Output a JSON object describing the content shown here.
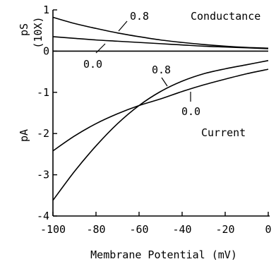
{
  "chart_data": {
    "type": "line",
    "xlabel": "Membrane Potential (mV)",
    "xlim": [
      -100,
      0
    ],
    "ylim": [
      -4,
      1
    ],
    "x_ticks": [
      -100,
      -80,
      -60,
      -40,
      -20,
      0
    ],
    "y_ticks": [
      1,
      0,
      -1,
      -2,
      -3,
      -4
    ],
    "x_tick_labels": [
      "-100",
      "-80",
      "-60",
      "-40",
      "-20",
      "0"
    ],
    "y_tick_labels": [
      "1",
      "0",
      "-1",
      "-2",
      "-3",
      "-4"
    ],
    "y_axis_labels": {
      "upper": "pS",
      "upper_sub": "(10X)",
      "lower": "pA"
    },
    "grid": false,
    "groups": [
      {
        "name": "Conductance",
        "label_text": "Conductance"
      },
      {
        "name": "Current",
        "label_text": "Current"
      }
    ],
    "series": [
      {
        "group": "Conductance",
        "label": "0.8",
        "x": [
          -100,
          -90,
          -80,
          -70,
          -60,
          -50,
          -40,
          -30,
          -20,
          -10,
          0
        ],
        "y": [
          0.82,
          0.67,
          0.55,
          0.44,
          0.35,
          0.27,
          0.21,
          0.16,
          0.12,
          0.09,
          0.07
        ]
      },
      {
        "group": "Conductance",
        "label": "0.0",
        "x": [
          -100,
          -90,
          -80,
          -70,
          -60,
          -50,
          -40,
          -30,
          -20,
          -10,
          0
        ],
        "y": [
          0.35,
          0.31,
          0.27,
          0.24,
          0.21,
          0.18,
          0.15,
          0.12,
          0.1,
          0.08,
          0.06
        ]
      },
      {
        "group": "Conductance",
        "label": "",
        "x": [
          -100,
          0
        ],
        "y": [
          0,
          0
        ]
      },
      {
        "group": "Current",
        "label": "0.8",
        "x": [
          -100,
          -90,
          -80,
          -70,
          -60,
          -50,
          -40,
          -30,
          -20,
          -10,
          0
        ],
        "y": [
          -3.62,
          -2.92,
          -2.3,
          -1.76,
          -1.32,
          -0.98,
          -0.73,
          -0.55,
          -0.43,
          -0.33,
          -0.23
        ]
      },
      {
        "group": "Current",
        "label": "0.0",
        "x": [
          -100,
          -90,
          -80,
          -70,
          -60,
          -50,
          -40,
          -30,
          -20,
          -10,
          0
        ],
        "y": [
          -2.42,
          -2.06,
          -1.76,
          -1.52,
          -1.32,
          -1.16,
          -0.98,
          -0.82,
          -0.68,
          -0.55,
          -0.44
        ]
      }
    ]
  }
}
